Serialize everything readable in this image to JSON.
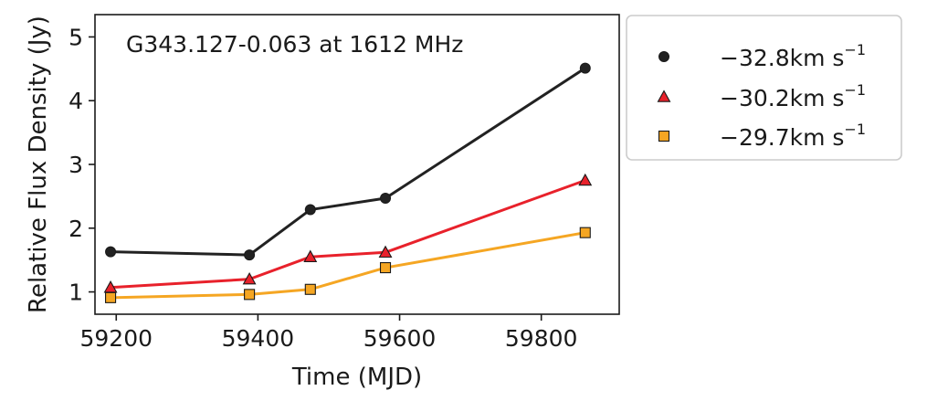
{
  "chart_data": {
    "type": "line",
    "annotation": "G343.127-0.063 at 1612 MHz",
    "xlabel": "Time (MJD)",
    "ylabel": "Relative Flux Density (Jy)",
    "xlim": [
      59170,
      59910
    ],
    "ylim": [
      0.65,
      5.35
    ],
    "xticks": [
      59200,
      59400,
      59600,
      59800
    ],
    "yticks": [
      1,
      2,
      3,
      4,
      5
    ],
    "grid": false,
    "legend_position": "outside-right",
    "series": [
      {
        "name": "−32.8km s",
        "superscript": "−1",
        "marker": "circle",
        "color": "#222222",
        "x": [
          59192,
          59388,
          59474,
          59580,
          59862
        ],
        "y": [
          1.63,
          1.58,
          2.29,
          2.47,
          4.51
        ]
      },
      {
        "name": "−30.2km s",
        "superscript": "−1",
        "marker": "triangle",
        "color": "#e8212b",
        "x": [
          59192,
          59388,
          59474,
          59580,
          59862
        ],
        "y": [
          1.07,
          1.2,
          1.55,
          1.62,
          2.75
        ]
      },
      {
        "name": "−29.7km s",
        "superscript": "−1",
        "marker": "square",
        "color": "#f5a623",
        "x": [
          59192,
          59388,
          59474,
          59580,
          59862
        ],
        "y": [
          0.91,
          0.96,
          1.04,
          1.38,
          1.93
        ]
      }
    ]
  }
}
